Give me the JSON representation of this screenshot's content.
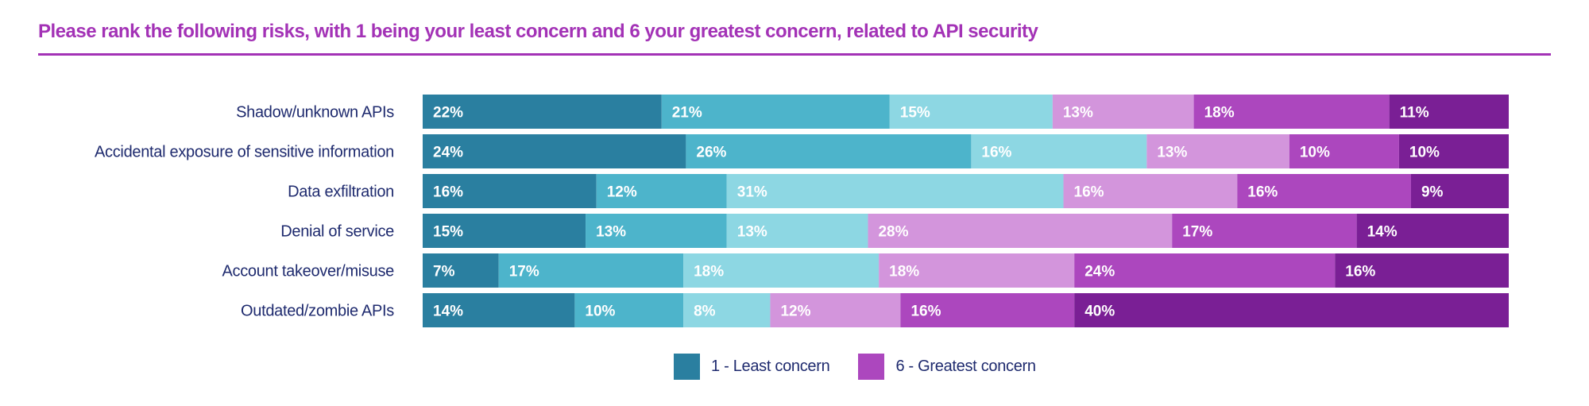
{
  "chart_data": {
    "type": "bar",
    "orientation": "horizontal",
    "stacked": true,
    "title": "Please rank the following risks, with 1 being your least concern and 6 your greatest concern, related to API security",
    "categories": [
      "Shadow/unknown APIs",
      "Accidental exposure of sensitive information",
      "Data exfiltration",
      "Denial of service",
      "Account takeover/misuse",
      "Outdated/zombie APIs"
    ],
    "series": [
      {
        "name": "1 - Least concern",
        "color": "#2a7fa0",
        "values": [
          22,
          24,
          16,
          15,
          7,
          14
        ],
        "labels": [
          "22%",
          "24%",
          "16%",
          "15%",
          "7%",
          "14%"
        ]
      },
      {
        "name": "",
        "color": "#4db4cb",
        "values": [
          21,
          26,
          12,
          13,
          17,
          10
        ],
        "labels": [
          "21%",
          "26%",
          "12%",
          "13%",
          "17%",
          "10%"
        ]
      },
      {
        "name": "",
        "color": "#8dd7e3",
        "values": [
          15,
          16,
          31,
          13,
          18,
          8
        ],
        "labels": [
          "15%",
          "16%",
          "31%",
          "13%",
          "18%",
          "8%"
        ]
      },
      {
        "name": "",
        "color": "#d395dc",
        "values": [
          13,
          13,
          16,
          28,
          18,
          12
        ],
        "labels": [
          "13%",
          "13%",
          "16%",
          "28%",
          "18%",
          "12%"
        ]
      },
      {
        "name": "6 - Greatest concern",
        "color": "#ac47be",
        "values": [
          18,
          10,
          16,
          17,
          24,
          16
        ],
        "labels": [
          "18%",
          "10%",
          "16%",
          "17%",
          "24%",
          "16%"
        ]
      },
      {
        "name": "",
        "color": "#7a1f95",
        "values": [
          11,
          10,
          9,
          14,
          16,
          40
        ],
        "labels": [
          "11%",
          "10%",
          "9%",
          "14%",
          "16%",
          "40%"
        ]
      }
    ],
    "legend": {
      "placement": "bottom-center",
      "entries": [
        {
          "label": "1 - Least concern",
          "color": "#2a7fa0"
        },
        {
          "label": "6 - Greatest concern",
          "color": "#ac47be"
        }
      ]
    },
    "xlabel": "",
    "ylabel": "",
    "grid": false
  }
}
